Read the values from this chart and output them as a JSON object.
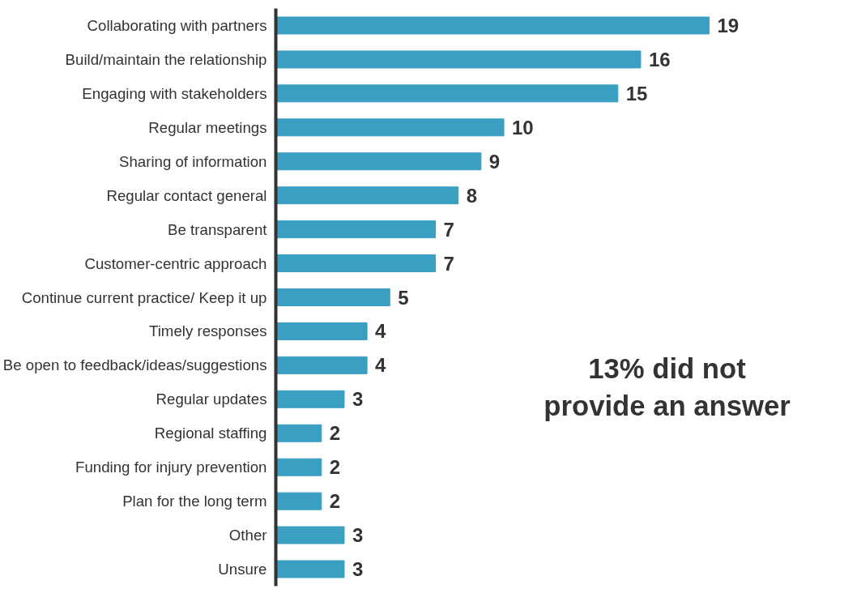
{
  "chart_data": {
    "type": "bar",
    "orientation": "horizontal",
    "categories": [
      "Collaborating with partners",
      "Build/maintain the relationship",
      "Engaging with stakeholders",
      "Regular meetings",
      "Sharing of information",
      "Regular contact general",
      "Be transparent",
      "Customer-centric approach",
      "Continue current practice/ Keep it up",
      "Timely responses",
      "Be open to feedback/ideas/suggestions",
      "Regular updates",
      "Regional staffing",
      "Funding for injury prevention",
      "Plan for the long term",
      "Other",
      "Unsure"
    ],
    "values": [
      19,
      16,
      15,
      10,
      9,
      8,
      7,
      7,
      5,
      4,
      4,
      3,
      2,
      2,
      2,
      3,
      3
    ],
    "color": "#3a9fc1",
    "data_labels": true,
    "tick_labels": "y",
    "grid": false,
    "annotations": [
      "13% did not provide an answer"
    ]
  }
}
